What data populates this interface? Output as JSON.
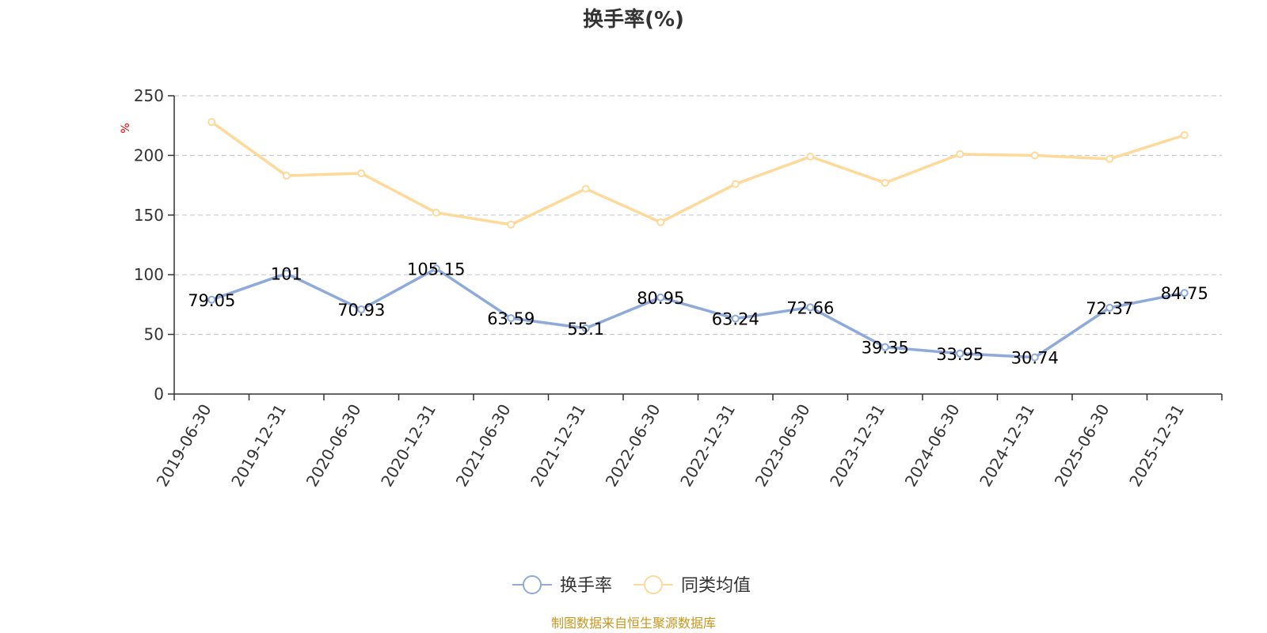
{
  "chart_data": {
    "type": "line",
    "title": "换手率(%)",
    "ylabel": "%",
    "ylim": [
      0,
      250
    ],
    "yticks": [
      0,
      50,
      100,
      150,
      200,
      250
    ],
    "grid": true,
    "legend_position": "bottom-center",
    "categories": [
      "2019-06-30",
      "2019-12-31",
      "2020-06-30",
      "2020-12-31",
      "2021-06-30",
      "2021-12-31",
      "2022-06-30",
      "2022-12-31",
      "2023-06-30",
      "2023-12-31",
      "2024-06-30",
      "2024-12-31",
      "2025-06-30",
      "2025-12-31"
    ],
    "series": [
      {
        "name": "换手率",
        "color": "#8eaadb",
        "show_labels": true,
        "values": [
          79.05,
          101,
          70.93,
          105.15,
          63.59,
          55.1,
          80.95,
          63.24,
          72.66,
          39.35,
          33.95,
          30.74,
          72.37,
          84.75
        ]
      },
      {
        "name": "同类均值",
        "color": "#fdd99a",
        "show_labels": false,
        "values": [
          228,
          183,
          185,
          152,
          142,
          172,
          144,
          176,
          199,
          177,
          201,
          200,
          197,
          217
        ]
      }
    ],
    "source_note": "制图数据来自恒生聚源数据库"
  }
}
